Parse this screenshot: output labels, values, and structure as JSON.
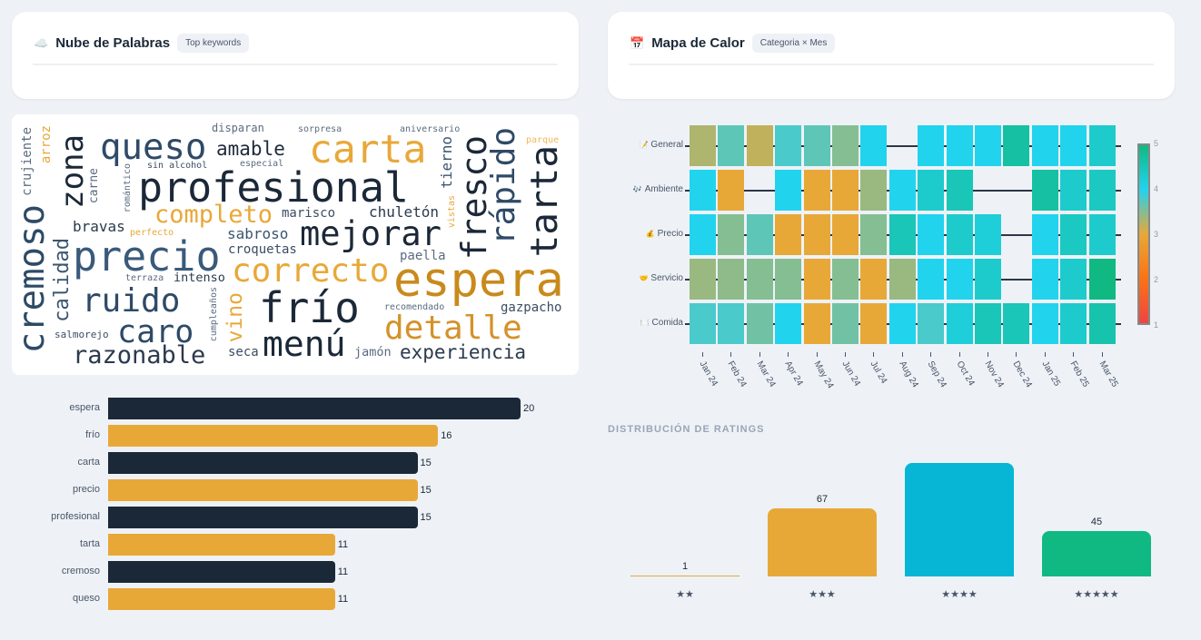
{
  "wordcloud_card": {
    "title": "Nube de Palabras",
    "badge": "Top keywords",
    "icon": "cloud-icon"
  },
  "heatmap_card": {
    "title": "Mapa de Calor",
    "badge": "Categoria × Mes",
    "icon": "calendar-icon"
  },
  "wordcloud": {
    "words": [
      {
        "text": "queso",
        "color": "#2e4a66"
      },
      {
        "text": "amable",
        "color": "#1e2a3a"
      },
      {
        "text": "disparan",
        "color": "#5a6b80"
      },
      {
        "text": "sorpresa",
        "color": "#5a6b80"
      },
      {
        "text": "aniversario",
        "color": "#5a6b80"
      },
      {
        "text": "carta",
        "color": "#e8a838"
      },
      {
        "text": "parque",
        "color": "#f0b85a"
      },
      {
        "text": "sin alcohol",
        "color": "#3b4d63"
      },
      {
        "text": "especial",
        "color": "#5a6b80"
      },
      {
        "text": "profesional",
        "color": "#1b2838"
      },
      {
        "text": "completo",
        "color": "#e8a838"
      },
      {
        "text": "marisco",
        "color": "#3b4d63"
      },
      {
        "text": "chuletón",
        "color": "#2b3a4d"
      },
      {
        "text": "bravas",
        "color": "#2b3a4d"
      },
      {
        "text": "perfecto",
        "color": "#e8a838"
      },
      {
        "text": "mejorar",
        "color": "#1b2838"
      },
      {
        "text": "sabroso",
        "color": "#3b5570"
      },
      {
        "text": "croquetas",
        "color": "#3b4d63"
      },
      {
        "text": "precio",
        "color": "#3a5a7a"
      },
      {
        "text": "paella",
        "color": "#5a6b80"
      },
      {
        "text": "correcto",
        "color": "#e8a838"
      },
      {
        "text": "espera",
        "color": "#c98a1c"
      },
      {
        "text": "terraza",
        "color": "#5a6b80"
      },
      {
        "text": "intenso",
        "color": "#2b3a4d"
      },
      {
        "text": "ruido",
        "color": "#2e4a66"
      },
      {
        "text": "frío",
        "color": "#1b2838"
      },
      {
        "text": "recomendado",
        "color": "#5a6b80"
      },
      {
        "text": "gazpacho",
        "color": "#3b4d63"
      },
      {
        "text": "caro",
        "color": "#2e4a66"
      },
      {
        "text": "detalle",
        "color": "#d4922a"
      },
      {
        "text": "salmorejo",
        "color": "#3b4d63"
      },
      {
        "text": "menú",
        "color": "#1b2838"
      },
      {
        "text": "razonable",
        "color": "#2b3a4d"
      },
      {
        "text": "seca",
        "color": "#3b4d63"
      },
      {
        "text": "jamón",
        "color": "#5a6b80"
      },
      {
        "text": "experiencia",
        "color": "#2b3a4d"
      },
      {
        "text": "cremoso",
        "color": "#2e4a66"
      },
      {
        "text": "crujiente",
        "color": "#5a6b80"
      },
      {
        "text": "arroz",
        "color": "#e8a838"
      },
      {
        "text": "zona",
        "color": "#1b2838"
      },
      {
        "text": "carne",
        "color": "#5a6b80"
      },
      {
        "text": "romántico",
        "color": "#5a6b80"
      },
      {
        "text": "calidad",
        "color": "#3b5570"
      },
      {
        "text": "cumpleaños",
        "color": "#5a6b80"
      },
      {
        "text": "vino",
        "color": "#e8a838"
      },
      {
        "text": "tierno",
        "color": "#3b5570"
      },
      {
        "text": "vistas",
        "color": "#e8a838"
      },
      {
        "text": "fresco",
        "color": "#1b2838"
      },
      {
        "text": "rápido",
        "color": "#2e4a66"
      },
      {
        "text": "tarta",
        "color": "#1b2838"
      }
    ]
  },
  "chart_data": [
    {
      "type": "bar",
      "orientation": "horizontal",
      "title": "",
      "categories": [
        "espera",
        "frío",
        "carta",
        "precio",
        "profesional",
        "tarta",
        "cremoso",
        "queso"
      ],
      "values": [
        20,
        16,
        15,
        15,
        15,
        11,
        11,
        11
      ],
      "colors": [
        "#1b2838",
        "#e8a838"
      ],
      "xlim": [
        0,
        20
      ]
    },
    {
      "type": "heatmap",
      "title": "",
      "rows": [
        "General",
        "Ambiente",
        "Precio",
        "Servicio",
        "Comida"
      ],
      "row_icons": [
        "📝",
        "🎶",
        "💰",
        "🤝",
        "🍽️"
      ],
      "columns": [
        "Jan 24",
        "Feb 24",
        "Mar 24",
        "Apr 24",
        "May 24",
        "Jun 24",
        "Jul 24",
        "Aug 24",
        "Sep 24",
        "Oct 24",
        "Nov 24",
        "Dec 24",
        "Jan 25",
        "Feb 25",
        "Mar 25"
      ],
      "values": [
        [
          3.3,
          3.7,
          3.2,
          3.8,
          3.7,
          3.5,
          4.0,
          null,
          4.0,
          4.0,
          4.0,
          4.7,
          4.0,
          4.0,
          4.3
        ],
        [
          4.0,
          3.0,
          null,
          4.0,
          3.0,
          3.0,
          3.4,
          4.0,
          4.3,
          4.5,
          null,
          null,
          4.7,
          4.3,
          4.4
        ],
        [
          4.0,
          3.5,
          3.7,
          3.0,
          3.0,
          3.0,
          3.5,
          4.5,
          4.0,
          4.3,
          4.2,
          null,
          4.0,
          4.4,
          4.3
        ],
        [
          3.4,
          3.45,
          3.5,
          3.5,
          3.0,
          3.5,
          3.0,
          3.4,
          4.0,
          4.0,
          4.3,
          null,
          4.0,
          4.3,
          5.0
        ],
        [
          3.8,
          3.8,
          3.6,
          4.0,
          3.0,
          3.6,
          3.0,
          4.0,
          3.8,
          4.2,
          4.5,
          4.5,
          4.0,
          4.3,
          4.6
        ]
      ],
      "colorbar": {
        "range": [
          1,
          5
        ],
        "ticks": [
          "5",
          "4",
          "3",
          "2",
          "1"
        ],
        "scale": [
          "#ef4444",
          "#f97316",
          "#e8a838",
          "#22d3ee",
          "#10b981"
        ]
      }
    },
    {
      "type": "bar",
      "title": "DISTRIBUCIÓN DE RATINGS",
      "categories": [
        "★★",
        "★★★",
        "★★★★",
        "★★★★★"
      ],
      "values": [
        1,
        67,
        112,
        45
      ],
      "colors": [
        "#e8a838",
        "#e8a838",
        "#06b6d4",
        "#10b981"
      ]
    }
  ]
}
